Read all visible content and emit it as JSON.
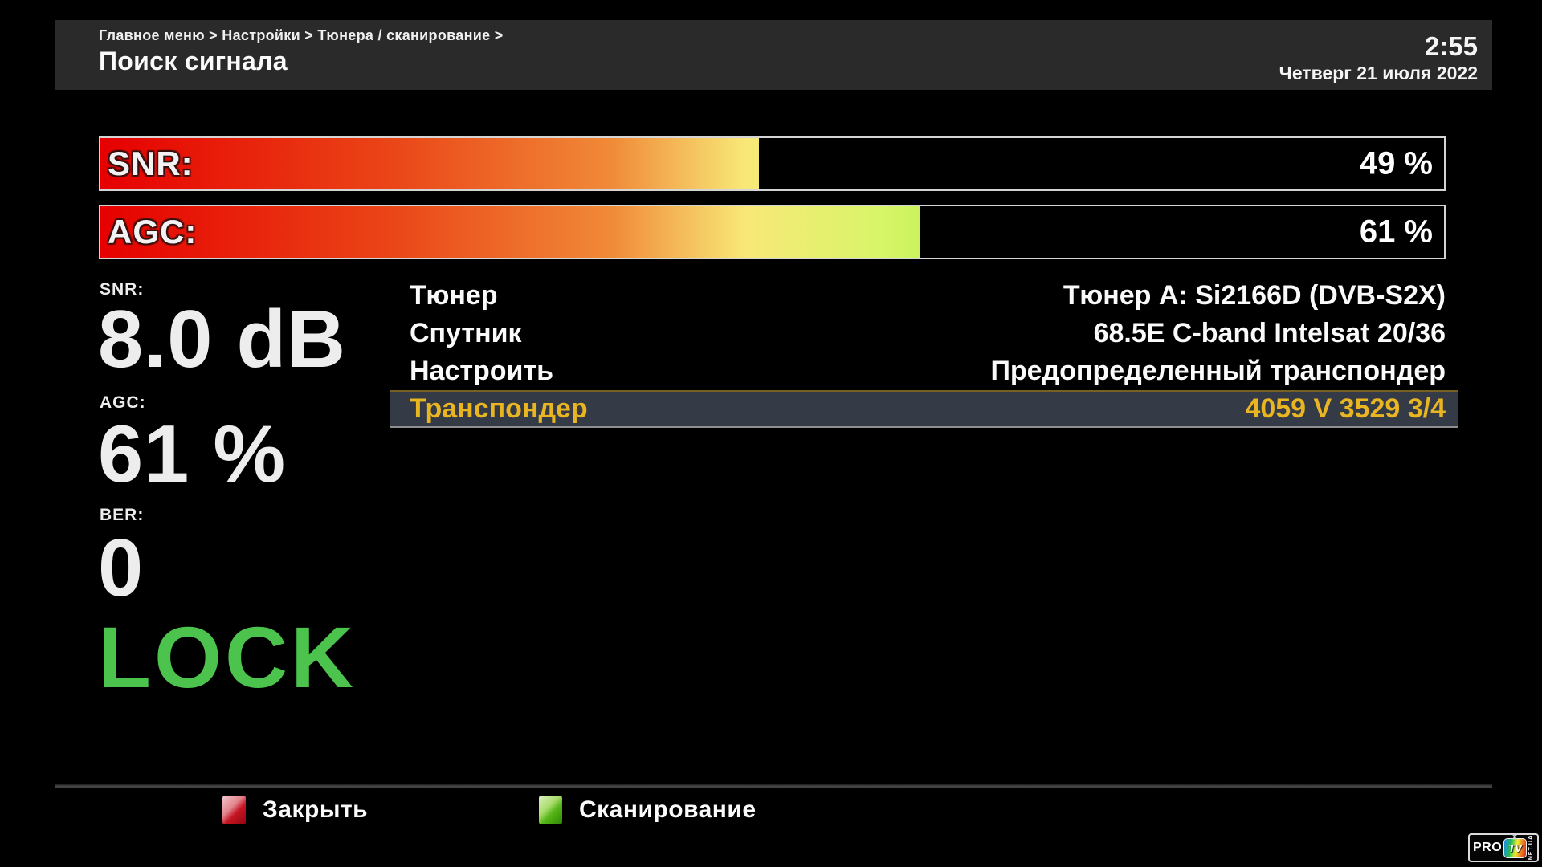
{
  "header": {
    "breadcrumb": "Главное меню > Настройки > Тюнера / сканирование >",
    "title": "Поиск сигнала",
    "time": "2:55",
    "date": "Четверг 21 июля 2022"
  },
  "signal_bars": [
    {
      "label": "SNR:",
      "value": "49 %",
      "percent": 49
    },
    {
      "label": "AGC:",
      "value": "61 %",
      "percent": 61
    }
  ],
  "readouts": {
    "snr_label": "SNR:",
    "snr_value": "8.0 dB",
    "agc_label": "AGC:",
    "agc_value": "61 %",
    "ber_label": "BER:",
    "ber_value": "0",
    "lock_status": "LOCK"
  },
  "menu": {
    "rows": [
      {
        "label": "Тюнер",
        "value": "Тюнер A: Si2166D (DVB-S2X)",
        "selected": false
      },
      {
        "label": "Спутник",
        "value": "68.5E C-band Intelsat 20/36",
        "selected": false
      },
      {
        "label": "Настроить",
        "value": "Предопределенный транспондер",
        "selected": false
      },
      {
        "label": "Транспондер",
        "value": "4059 V 3529 3/4",
        "selected": true
      }
    ]
  },
  "footer": {
    "close_button": {
      "label": "Закрыть",
      "color": "#c41524"
    },
    "scan_button": {
      "label": "Сканирование",
      "color": "#55b517"
    }
  },
  "logo": {
    "pro": "PRO",
    "tv": "TV",
    "side": "NET.UA"
  },
  "colors": {
    "header_bg": "#2a2a2a",
    "accent_gold": "#e9b622",
    "lock_green": "#4cc34c",
    "selected_row_bg": "#343a46",
    "gradient_start": "#e60000",
    "gradient_mid": "#f8e878",
    "gradient_end": "#44d800"
  }
}
